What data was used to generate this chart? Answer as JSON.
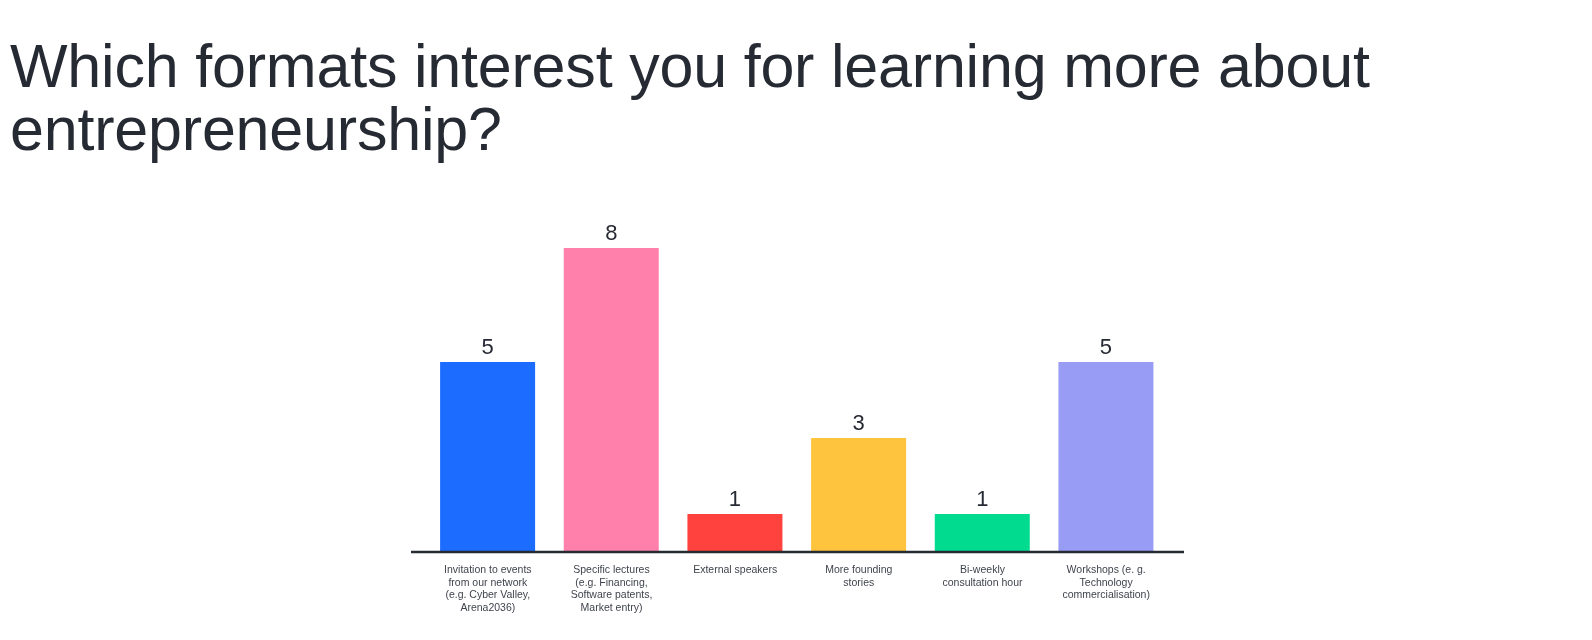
{
  "chart_data": {
    "type": "bar",
    "title": "Which formats interest you for learning more about entrepreneurship?",
    "categories": [
      "Invitation to events from our network (e.g. Cyber Valley, Arena2036)",
      "Specific lectures (e.g. Financing, Software patents, Market entry)",
      "External speakers",
      "More founding stories",
      "Bi-weekly consultation hour",
      "Workshops (e. g. Technology commercialisation)"
    ],
    "values": [
      5,
      8,
      1,
      3,
      1,
      5
    ],
    "colors": [
      "#1c6cff",
      "#ff80ab",
      "#ff423d",
      "#ffc43d",
      "#00db8f",
      "#989cf4"
    ],
    "data_labels": true
  }
}
